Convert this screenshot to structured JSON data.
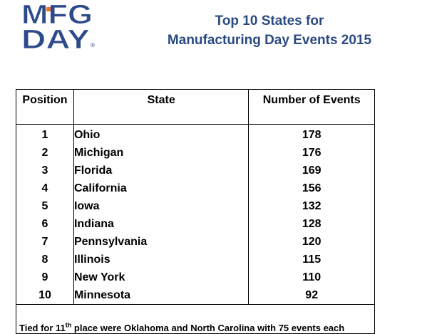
{
  "logo": {
    "line1": "MFG",
    "line2": "DAY",
    "registered": "®",
    "colors": {
      "blue": "#2d4a8a",
      "orange": "#e8752a"
    }
  },
  "title": {
    "line1": "Top 10 States for",
    "line2": "Manufacturing Day Events 2015",
    "color": "#2a4a82"
  },
  "table": {
    "headers": {
      "position": "Position",
      "state": "State",
      "events": "Number of Events"
    },
    "rows": [
      {
        "position": "1",
        "state": "Ohio",
        "events": "178"
      },
      {
        "position": "2",
        "state": "Michigan",
        "events": "176"
      },
      {
        "position": "3",
        "state": "Florida",
        "events": "169"
      },
      {
        "position": "4",
        "state": "California",
        "events": "156"
      },
      {
        "position": "5",
        "state": "Iowa",
        "events": "132"
      },
      {
        "position": "6",
        "state": "Indiana",
        "events": "128"
      },
      {
        "position": "7",
        "state": "Pennsylvania",
        "events": "120"
      },
      {
        "position": "8",
        "state": "Illinois",
        "events": "115"
      },
      {
        "position": "9",
        "state": "New York",
        "events": "110"
      },
      {
        "position": "10",
        "state": "Minnesota",
        "events": "92"
      }
    ],
    "note": {
      "prefix": "Tied for 11",
      "superscript": "th",
      "suffix": " place were Oklahoma and North Carolina with 75 events each"
    }
  }
}
